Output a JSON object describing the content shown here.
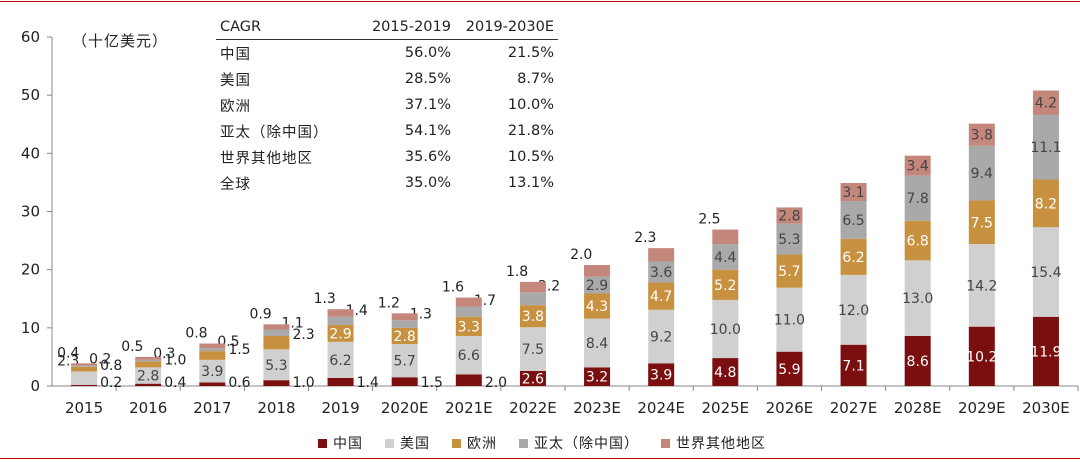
{
  "unit_label": "（十亿美元）",
  "cagr_table": {
    "headers": [
      "CAGR",
      "2015-2019",
      "2019-2030E"
    ],
    "rows": [
      [
        "中国",
        "56.0%",
        "21.5%"
      ],
      [
        "美国",
        "28.5%",
        "8.7%"
      ],
      [
        "欧洲",
        "37.1%",
        "10.0%"
      ],
      [
        "亚太（除中国）",
        "54.1%",
        "21.8%"
      ],
      [
        "世界其他地区",
        "35.6%",
        "10.5%"
      ],
      [
        "全球",
        "35.0%",
        "13.1%"
      ]
    ]
  },
  "colors": {
    "china": "#7b0e0e",
    "us": "#d0d0d0",
    "europe": "#c8913f",
    "apac": "#a9a9a9",
    "rest": "#c4877c",
    "frame": "#c00000"
  },
  "chart_data": {
    "type": "bar",
    "stacked": true,
    "categories": [
      "2015",
      "2016",
      "2017",
      "2018",
      "2019",
      "2020E",
      "2021E",
      "2022E",
      "2023E",
      "2024E",
      "2025E",
      "2026E",
      "2027E",
      "2028E",
      "2029E",
      "2030E"
    ],
    "series": [
      {
        "name": "中国",
        "color_key": "china",
        "values": [
          0.2,
          0.4,
          0.6,
          1.0,
          1.4,
          1.5,
          2.0,
          2.6,
          3.2,
          3.9,
          4.8,
          5.9,
          7.1,
          8.6,
          10.2,
          11.9
        ]
      },
      {
        "name": "美国",
        "color_key": "us",
        "values": [
          2.3,
          2.8,
          3.9,
          5.3,
          6.2,
          5.7,
          6.6,
          7.5,
          8.4,
          9.2,
          10.0,
          11.0,
          12.0,
          13.0,
          14.2,
          15.4
        ]
      },
      {
        "name": "欧洲",
        "color_key": "europe",
        "values": [
          0.8,
          1.0,
          1.5,
          2.3,
          2.9,
          2.8,
          3.3,
          3.8,
          4.3,
          4.7,
          5.2,
          5.7,
          6.2,
          6.8,
          7.5,
          8.2
        ]
      },
      {
        "name": "亚太（除中国）",
        "color_key": "apac",
        "values": [
          0.2,
          0.3,
          0.5,
          1.1,
          1.4,
          1.3,
          1.7,
          2.2,
          2.9,
          3.6,
          4.4,
          5.3,
          6.5,
          7.8,
          9.4,
          11.1
        ]
      },
      {
        "name": "世界其他地区",
        "color_key": "rest",
        "values": [
          0.4,
          0.5,
          0.8,
          0.9,
          1.3,
          1.2,
          1.6,
          1.8,
          2.0,
          2.3,
          2.5,
          2.8,
          3.1,
          3.4,
          3.8,
          4.2
        ]
      }
    ],
    "ylim": [
      0,
      60
    ],
    "yticks": [
      0,
      10,
      20,
      30,
      40,
      50,
      60
    ],
    "legend_position": "bottom",
    "grid": false
  }
}
